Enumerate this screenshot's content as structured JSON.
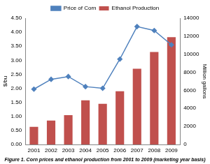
{
  "chart_data": {
    "type": "bar",
    "title": "Figure 1. Corn prices and ethanol production from 2001 to 2009 (marketing year basis)",
    "ylabel": "$/bu",
    "y2label": "Million gallons",
    "categories": [
      "2001",
      "2002",
      "2003",
      "2004",
      "2005",
      "2006",
      "2007",
      "2008",
      "2009"
    ],
    "series": [
      {
        "name": "Ethanol Production",
        "type": "bar",
        "color": "#c0504d",
        "axis": "y2",
        "values": [
          1950,
          2650,
          3250,
          4900,
          4500,
          5900,
          8400,
          10250,
          11900
        ]
      },
      {
        "name": "Price of Corn",
        "type": "line",
        "color": "#4f81bd",
        "marker": "diamond",
        "axis": "y",
        "values": [
          1.97,
          2.32,
          2.42,
          2.06,
          2.0,
          3.04,
          4.2,
          4.06,
          3.55
        ]
      }
    ],
    "ylim": [
      0,
      4.5
    ],
    "yticks": [
      {
        "value": 0,
        "label": "0.00"
      },
      {
        "value": 0.5,
        "label": "0.50"
      },
      {
        "value": 1,
        "label": "1.00"
      },
      {
        "value": 1.5,
        "label": "1.50"
      },
      {
        "value": 2,
        "label": "2.00"
      },
      {
        "value": 2.5,
        "label": "2.50"
      },
      {
        "value": 3,
        "label": "3.00"
      },
      {
        "value": 3.5,
        "label": "3.50"
      },
      {
        "value": 4,
        "label": "4.00"
      },
      {
        "value": 4.5,
        "label": "4.50"
      }
    ],
    "y2lim": [
      0,
      14000
    ],
    "y2ticks": [
      0,
      2000,
      4000,
      6000,
      8000,
      10000,
      12000,
      14000
    ],
    "grid": false,
    "legend": "top"
  }
}
